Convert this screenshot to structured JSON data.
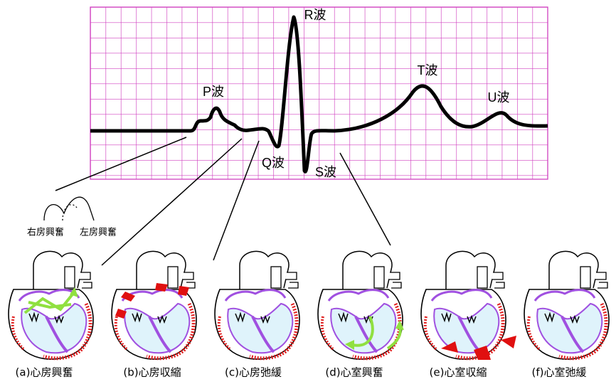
{
  "wave_labels": [
    "P波",
    "R波",
    "Q波",
    "S波",
    "T波",
    "U波"
  ],
  "atria_labels": [
    "右房興奮",
    "左房興奮"
  ],
  "panels": [
    "(a)心房興奮",
    "(b)心房収縮",
    "(c)心房弛緩",
    "(d)心室興奮",
    "(e)心室収縮",
    "(f)心室弛緩"
  ]
}
